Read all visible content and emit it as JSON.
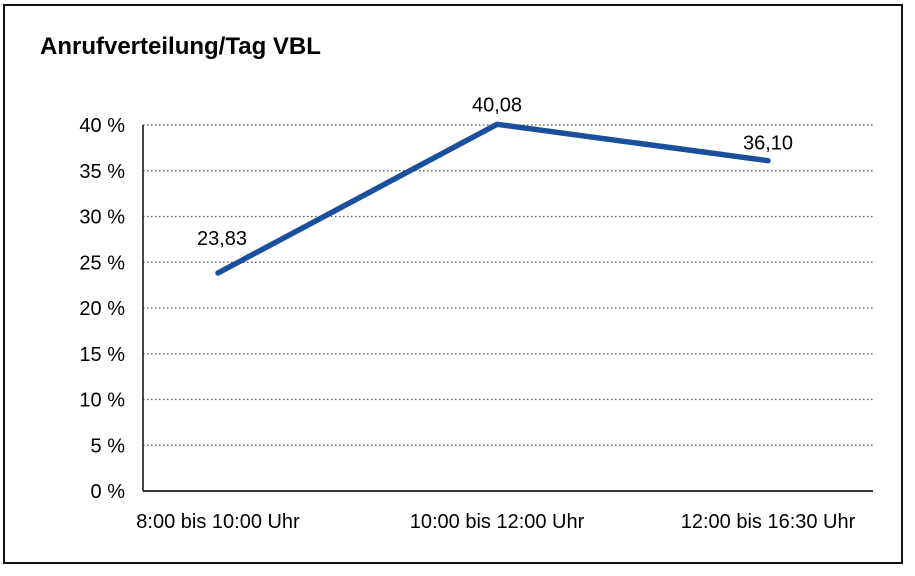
{
  "window": {
    "background_color": "#ffffff",
    "border_color": "#111111"
  },
  "chart_data": {
    "type": "line",
    "title": "Anrufverteilung/Tag VBL",
    "categories": [
      "8:00 bis 10:00 Uhr",
      "10:00 bis 12:00 Uhr",
      "12:00 bis 16:30 Uhr"
    ],
    "values": [
      23.83,
      40.08,
      36.1
    ],
    "point_labels": [
      "23,83",
      "40,08",
      "36,10"
    ],
    "xlabel": "",
    "ylabel": "",
    "ylim": [
      0,
      40
    ],
    "ytick_step": 5,
    "ytick_labels": [
      "0 %",
      "5 %",
      "10 %",
      "15 %",
      "20 %",
      "25 %",
      "30 %",
      "35 %",
      "40 %"
    ],
    "grid": "horizontal-dotted",
    "legend_position": "none",
    "colors": {
      "line": "#1A4F9C",
      "axis": "#1a1a1a",
      "gridline": "#555555",
      "text": "#000000"
    }
  }
}
